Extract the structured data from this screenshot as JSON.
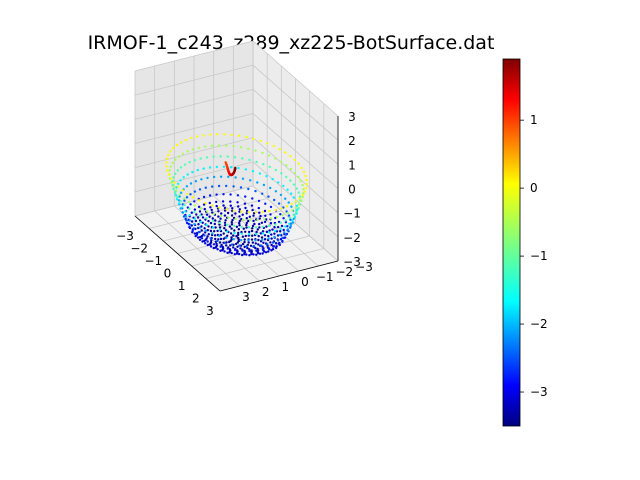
{
  "chart_data": {
    "type": "scatter",
    "projection": "3d",
    "title": "IRMOF-1_c243_z289_xz225-BotSurface.dat",
    "xlabel": "",
    "ylabel": "",
    "zlabel": "",
    "xlim": [
      -3,
      3
    ],
    "ylim": [
      -3,
      3
    ],
    "zlim": [
      -3,
      3
    ],
    "x_ticks": [
      "−3",
      "−2",
      "−1",
      "0",
      "1",
      "2",
      "3"
    ],
    "y_ticks": [
      "−3",
      "−2",
      "−1",
      "0",
      "1",
      "2",
      "3"
    ],
    "z_ticks": [
      "−3",
      "−2",
      "−1",
      "0",
      "1",
      "2",
      "3"
    ],
    "grid": true,
    "colormap": "jet",
    "colorbar": {
      "range": [
        -3.5,
        1.9
      ],
      "ticks": [
        "1",
        "0",
        "−1",
        "−2",
        "−3"
      ],
      "tick_values": [
        1,
        0,
        -1,
        -2,
        -3
      ]
    },
    "series": [
      {
        "description_shape": "bowl",
        "rim_radius": 2.9,
        "bottom_radius": 1.9,
        "bottom_height": -2.9,
        "rim_height": -0.3,
        "color_value_range": [
          -3.4,
          -0.1
        ]
      },
      {
        "description_shape": "curved ridge",
        "color_value_range": [
          0.8,
          1.9
        ]
      }
    ]
  }
}
